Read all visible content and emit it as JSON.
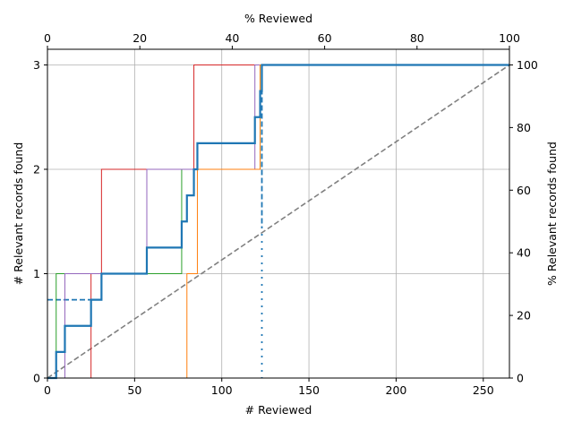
{
  "chart_data": {
    "type": "line",
    "xlabel": "# Reviewed",
    "ylabel": "# Relevant records found",
    "x2label": "% Reviewed",
    "y2label": "% Relevant records found",
    "xlim": [
      0,
      265
    ],
    "ylim": [
      0,
      3.15
    ],
    "x2lim": [
      0,
      100
    ],
    "y2lim": [
      0,
      105
    ],
    "grid": true,
    "xticks": [
      0,
      50,
      100,
      150,
      200,
      250
    ],
    "yticks": [
      0,
      1,
      2,
      3
    ],
    "x2ticks": [
      0,
      20,
      40,
      60,
      80,
      100
    ],
    "y2ticks": [
      0,
      20,
      40,
      60,
      80,
      100
    ],
    "series": [
      {
        "color": "#2ca02c",
        "width": 1,
        "points": [
          [
            0,
            0
          ],
          [
            5,
            0
          ],
          [
            5,
            1
          ],
          [
            77,
            1
          ],
          [
            77,
            2
          ],
          [
            122,
            2
          ],
          [
            122,
            3
          ],
          [
            265,
            3
          ]
        ]
      },
      {
        "color": "#d62728",
        "width": 1,
        "points": [
          [
            0,
            0
          ],
          [
            25,
            0
          ],
          [
            25,
            1
          ],
          [
            31,
            1
          ],
          [
            31,
            2
          ],
          [
            84,
            2
          ],
          [
            84,
            3
          ],
          [
            265,
            3
          ]
        ]
      },
      {
        "color": "#9467bd",
        "width": 1,
        "points": [
          [
            0,
            0
          ],
          [
            10,
            0
          ],
          [
            10,
            1
          ],
          [
            57,
            1
          ],
          [
            57,
            2
          ],
          [
            119,
            2
          ],
          [
            119,
            3
          ],
          [
            265,
            3
          ]
        ]
      },
      {
        "color": "#ff7f0e",
        "width": 1,
        "points": [
          [
            0,
            0
          ],
          [
            80,
            0
          ],
          [
            80,
            1
          ],
          [
            86,
            1
          ],
          [
            86,
            2
          ],
          [
            122,
            2
          ],
          [
            122,
            3
          ],
          [
            265,
            3
          ]
        ]
      },
      {
        "color": "#1f77b4",
        "width": 2.2,
        "points": [
          [
            0,
            0
          ],
          [
            5,
            0
          ],
          [
            5,
            0.25
          ],
          [
            10,
            0.25
          ],
          [
            10,
            0.5
          ],
          [
            25,
            0.5
          ],
          [
            25,
            0.75
          ],
          [
            31,
            0.75
          ],
          [
            31,
            1
          ],
          [
            57,
            1
          ],
          [
            57,
            1.25
          ],
          [
            77,
            1.25
          ],
          [
            77,
            1.5
          ],
          [
            80,
            1.5
          ],
          [
            80,
            1.75
          ],
          [
            84,
            1.75
          ],
          [
            84,
            2
          ],
          [
            86,
            2
          ],
          [
            86,
            2.25
          ],
          [
            119,
            2.25
          ],
          [
            119,
            2.5
          ],
          [
            122,
            2.5
          ],
          [
            122,
            2.75
          ],
          [
            123,
            2.75
          ],
          [
            123,
            3
          ],
          [
            265,
            3
          ]
        ]
      }
    ],
    "reference_lines": [
      {
        "kind": "random",
        "color": "#808080",
        "style": "dashed",
        "points": [
          [
            0,
            0
          ],
          [
            265,
            3
          ]
        ]
      },
      {
        "kind": "horizontal",
        "color": "#1f77b4",
        "style": "dashed",
        "points": [
          [
            0,
            0.75
          ],
          [
            25,
            0.75
          ]
        ]
      },
      {
        "kind": "vertical",
        "color": "#1f77b4",
        "style": "dashed",
        "points": [
          [
            123,
            3
          ],
          [
            123,
            1.45
          ]
        ]
      },
      {
        "kind": "vertical",
        "color": "#1f77b4",
        "style": "dotted",
        "points": [
          [
            123,
            1.45
          ],
          [
            123,
            0
          ]
        ]
      }
    ]
  }
}
